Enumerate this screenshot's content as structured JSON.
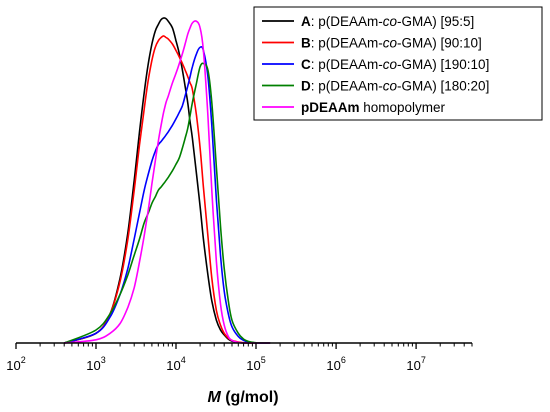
{
  "chart_data": {
    "type": "line",
    "title": "",
    "xlabel": {
      "italic": "M",
      "rest": " (g/mol)"
    },
    "ylabel": "",
    "xscale": "log",
    "xlim": [
      100,
      50000000
    ],
    "ylim": [
      0,
      1.0
    ],
    "x_ticks": [
      {
        "base": "10",
        "exp": "2",
        "value": 100
      },
      {
        "base": "10",
        "exp": "3",
        "value": 1000
      },
      {
        "base": "10",
        "exp": "4",
        "value": 10000
      },
      {
        "base": "10",
        "exp": "5",
        "value": 100000
      },
      {
        "base": "10",
        "exp": "6",
        "value": 1000000
      },
      {
        "base": "10",
        "exp": "7",
        "value": 10000000
      }
    ],
    "legend_position": "top-right",
    "series": [
      {
        "name": "A: p(DEAAm-co-GMA) [95:5]",
        "legend": {
          "bold": "A",
          "pre": ": p(DEAAm-",
          "italic": "co",
          "post": "-GMA) [95:5]"
        },
        "color": "#000000",
        "x": [
          400,
          1000,
          1500,
          2000,
          2500,
          3000,
          3500,
          4000,
          4500,
          5000,
          5500,
          6000,
          6500,
          7000,
          7500,
          8000,
          9000,
          10000,
          11000,
          12000,
          13000,
          14000,
          15000,
          16000,
          18000,
          20000,
          22000,
          25000,
          28000,
          32000,
          36000,
          40000,
          45000,
          50000,
          60000,
          70000,
          80000,
          100000,
          150000
        ],
        "y": [
          0.0,
          0.03,
          0.09,
          0.2,
          0.34,
          0.5,
          0.65,
          0.77,
          0.86,
          0.92,
          0.96,
          0.98,
          0.995,
          1.0,
          0.998,
          0.99,
          0.97,
          0.93,
          0.89,
          0.84,
          0.79,
          0.74,
          0.68,
          0.63,
          0.52,
          0.42,
          0.32,
          0.21,
          0.13,
          0.07,
          0.04,
          0.025,
          0.012,
          0.006,
          0.002,
          0.0,
          0.0,
          0.0,
          0.0
        ]
      },
      {
        "name": "B: p(DEAAm-co-GMA) [90:10]",
        "legend": {
          "bold": "B",
          "pre": ": p(DEAAm-",
          "italic": "co",
          "post": "-GMA) [90:10]"
        },
        "color": "#ff0000",
        "x": [
          400,
          1000,
          1500,
          2000,
          2500,
          3000,
          3500,
          4000,
          4500,
          5000,
          5500,
          6000,
          6500,
          7000,
          7500,
          8000,
          9000,
          10000,
          11000,
          12000,
          13000,
          14000,
          15000,
          16000,
          18000,
          20000,
          22000,
          25000,
          28000,
          32000,
          36000,
          40000,
          45000,
          50000,
          60000,
          70000,
          80000,
          100000,
          150000
        ],
        "y": [
          0.0,
          0.03,
          0.09,
          0.19,
          0.32,
          0.47,
          0.61,
          0.72,
          0.81,
          0.87,
          0.91,
          0.93,
          0.94,
          0.945,
          0.94,
          0.935,
          0.92,
          0.9,
          0.88,
          0.86,
          0.84,
          0.82,
          0.8,
          0.78,
          0.7,
          0.6,
          0.48,
          0.33,
          0.2,
          0.1,
          0.055,
          0.03,
          0.015,
          0.008,
          0.003,
          0.001,
          0.0,
          0.0,
          0.0
        ]
      },
      {
        "name": "C: p(DEAAm-co-GMA) [190:10]",
        "legend": {
          "bold": "C",
          "pre": ": p(DEAAm-",
          "italic": "co",
          "post": "-GMA) [190:10]"
        },
        "color": "#0000ff",
        "x": [
          400,
          1000,
          1500,
          2000,
          2500,
          3000,
          3500,
          4000,
          4500,
          5000,
          5500,
          6000,
          6500,
          7000,
          7500,
          8000,
          9000,
          10000,
          11000,
          12000,
          13000,
          14000,
          15000,
          16000,
          18000,
          20000,
          22000,
          25000,
          28000,
          32000,
          36000,
          40000,
          45000,
          50000,
          60000,
          70000,
          80000,
          100000,
          150000
        ],
        "y": [
          0.0,
          0.03,
          0.08,
          0.15,
          0.23,
          0.32,
          0.4,
          0.47,
          0.52,
          0.56,
          0.59,
          0.61,
          0.62,
          0.63,
          0.64,
          0.65,
          0.67,
          0.69,
          0.71,
          0.73,
          0.76,
          0.79,
          0.82,
          0.85,
          0.89,
          0.91,
          0.9,
          0.82,
          0.67,
          0.44,
          0.27,
          0.16,
          0.09,
          0.05,
          0.02,
          0.008,
          0.003,
          0.0,
          0.0
        ]
      },
      {
        "name": "D: p(DEAAm-co-GMA) [180:20]",
        "legend": {
          "bold": "D",
          "pre": ": p(DEAAm-",
          "italic": "co",
          "post": "-GMA) [180:20]"
        },
        "color": "#008000",
        "x": [
          400,
          1000,
          1500,
          2000,
          2500,
          3000,
          3500,
          4000,
          4500,
          5000,
          5500,
          6000,
          6500,
          7000,
          7500,
          8000,
          9000,
          10000,
          11000,
          12000,
          13000,
          14000,
          15000,
          16000,
          18000,
          20000,
          22000,
          25000,
          28000,
          32000,
          36000,
          40000,
          45000,
          50000,
          60000,
          70000,
          80000,
          100000,
          150000
        ],
        "y": [
          0.0,
          0.04,
          0.09,
          0.15,
          0.21,
          0.27,
          0.32,
          0.37,
          0.4,
          0.43,
          0.45,
          0.47,
          0.48,
          0.49,
          0.5,
          0.51,
          0.53,
          0.55,
          0.57,
          0.6,
          0.63,
          0.66,
          0.7,
          0.74,
          0.8,
          0.85,
          0.86,
          0.84,
          0.74,
          0.54,
          0.36,
          0.23,
          0.13,
          0.07,
          0.03,
          0.012,
          0.005,
          0.001,
          0.0
        ]
      },
      {
        "name": "pDEAAm homopolymer",
        "legend": {
          "bold": "pDEAAm",
          "pre": " homopolymer",
          "italic": "",
          "post": ""
        },
        "color": "#ff00ff",
        "x": [
          400,
          1000,
          1500,
          2000,
          2500,
          3000,
          3500,
          4000,
          4500,
          5000,
          5500,
          6000,
          6500,
          7000,
          7500,
          8000,
          9000,
          10000,
          11000,
          12000,
          13000,
          14000,
          15000,
          16000,
          18000,
          20000,
          22000,
          25000,
          28000,
          32000,
          36000,
          40000,
          45000,
          50000,
          60000,
          70000,
          80000,
          100000,
          150000
        ],
        "y": [
          0.0,
          0.01,
          0.03,
          0.06,
          0.11,
          0.17,
          0.25,
          0.33,
          0.41,
          0.49,
          0.56,
          0.62,
          0.67,
          0.71,
          0.74,
          0.76,
          0.8,
          0.83,
          0.86,
          0.89,
          0.92,
          0.95,
          0.97,
          0.985,
          0.99,
          0.97,
          0.9,
          0.7,
          0.47,
          0.25,
          0.12,
          0.055,
          0.02,
          0.008,
          0.002,
          0.0,
          0.0,
          0.0,
          0.0
        ]
      }
    ]
  }
}
